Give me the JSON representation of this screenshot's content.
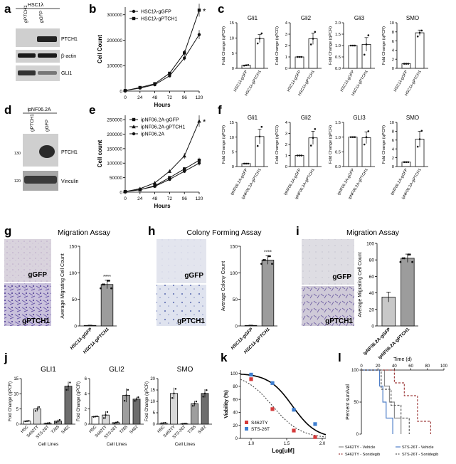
{
  "panel_labels": {
    "a": "a",
    "b": "b",
    "c": "c",
    "d": "d",
    "e": "e",
    "f": "f",
    "g": "g",
    "h": "h",
    "i": "i",
    "j": "j",
    "k": "k",
    "l": "l"
  },
  "chart_data": [
    {
      "id": "b",
      "type": "line",
      "title": "",
      "xlabel": "Hours",
      "ylabel": "Cell Count",
      "x": [
        0,
        24,
        48,
        72,
        96,
        120
      ],
      "xticks": [
        "0",
        "24",
        "48",
        "72",
        "96",
        "120"
      ],
      "yticks": [
        "0",
        "100000",
        "200000",
        "300000"
      ],
      "ylim": [
        0,
        330000
      ],
      "series": [
        {
          "name": "HSC1λ-gGFP",
          "marker": "circle",
          "values": [
            2000,
            12000,
            25000,
            60000,
            130000,
            222000
          ]
        },
        {
          "name": "HSC1λ-gPTCH1",
          "marker": "square",
          "values": [
            2000,
            14000,
            29000,
            70000,
            150000,
            318000
          ]
        }
      ],
      "annotation": "*",
      "legend": "top-left"
    },
    {
      "id": "e",
      "type": "line",
      "title": "",
      "xlabel": "Hours",
      "ylabel": "Cell count",
      "x": [
        0,
        24,
        48,
        72,
        96,
        120
      ],
      "xticks": [
        "0",
        "24",
        "48",
        "72",
        "96",
        "120"
      ],
      "yticks": [
        "0",
        "50000",
        "100000",
        "150000",
        "200000",
        "250000"
      ],
      "ylim": [
        0,
        265000
      ],
      "series": [
        {
          "name": "ipNF06.2A-gGFP",
          "marker": "square",
          "values": [
            2000,
            8000,
            22000,
            50000,
            80000,
            110000
          ]
        },
        {
          "name": "ipNF06.2A-gPTCH1",
          "marker": "triangle",
          "values": [
            2000,
            12000,
            32000,
            72000,
            125000,
            245000
          ]
        },
        {
          "name": "ipNF06.2A",
          "marker": "circle",
          "values": [
            2000,
            9000,
            20000,
            44000,
            72000,
            100000
          ]
        }
      ],
      "annotation": "*",
      "legend": "top-left"
    },
    {
      "id": "c",
      "type": "bar",
      "ylabel": "Fold Change (qPCR)",
      "categories": [
        "HSC1λ-gGFP",
        "HSC1λ-gPTCH1"
      ],
      "panels": [
        {
          "title": "Gli1",
          "yticks": [
            "0",
            "5",
            "10",
            "15"
          ],
          "ylim": [
            0,
            15
          ],
          "values": [
            1,
            9.8
          ],
          "err": [
            0.05,
            1.3
          ],
          "points": [
            [
              0.9,
              1,
              1.1
            ],
            [
              8.2,
              9.8,
              11.5
            ]
          ]
        },
        {
          "title": "Gli2",
          "yticks": [
            "0",
            "1",
            "2",
            "3",
            "4"
          ],
          "ylim": [
            0,
            4
          ],
          "values": [
            1,
            2.6
          ],
          "err": [
            0.02,
            0.5
          ],
          "points": [
            [
              1,
              1,
              1
            ],
            [
              2.1,
              2.6,
              3.2
            ]
          ]
        },
        {
          "title": "Gli3",
          "yticks": [
            "0.0",
            "0.5",
            "1.0",
            "1.5",
            "2.0"
          ],
          "ylim": [
            0,
            2
          ],
          "values": [
            1,
            1.05
          ],
          "err": [
            0.01,
            0.3
          ],
          "points": [
            [
              1,
              1,
              1
            ],
            [
              0.6,
              1.05,
              1.45
            ]
          ]
        },
        {
          "title": "SMO",
          "yticks": [
            "0",
            "2",
            "4",
            "6",
            "8",
            "10"
          ],
          "ylim": [
            0,
            10
          ],
          "values": [
            1,
            7.8
          ],
          "err": [
            0.05,
            0.6
          ],
          "points": [
            [
              1,
              1,
              1
            ],
            [
              7,
              7.8,
              8.3
            ]
          ]
        }
      ]
    },
    {
      "id": "f",
      "type": "bar",
      "ylabel": "Fold Change (qPCR)",
      "categories": [
        "ipNF06.2A-gGFP",
        "ipNF06.2A-gPTCH1"
      ],
      "panels": [
        {
          "title": "Gli1",
          "yticks": [
            "0",
            "5",
            "10",
            "15"
          ],
          "ylim": [
            0,
            15
          ],
          "values": [
            1,
            10.2
          ],
          "err": [
            0.05,
            2.5
          ],
          "points": [
            [
              1,
              1,
              1
            ],
            [
              7,
              10.2,
              13.5
            ]
          ]
        },
        {
          "title": "Gli2",
          "yticks": [
            "0",
            "1",
            "2",
            "3",
            "4"
          ],
          "ylim": [
            0,
            4
          ],
          "values": [
            1,
            2.6
          ],
          "err": [
            0.02,
            0.6
          ],
          "points": [
            [
              1,
              1,
              1
            ],
            [
              1.9,
              2.6,
              3.4
            ]
          ]
        },
        {
          "title": "GLI3",
          "yticks": [
            "0.0",
            "0.5",
            "1.0",
            "1.5"
          ],
          "ylim": [
            0,
            1.5
          ],
          "values": [
            1,
            0.98
          ],
          "err": [
            0.01,
            0.2
          ],
          "points": [
            [
              1,
              1,
              1
            ],
            [
              0.75,
              1,
              1.2
            ]
          ]
        },
        {
          "title": "SMO",
          "yticks": [
            "0",
            "2",
            "4",
            "6",
            "8",
            "10"
          ],
          "ylim": [
            0,
            10
          ],
          "values": [
            1,
            6.2
          ],
          "err": [
            0.05,
            1.8
          ],
          "points": [
            [
              1,
              1,
              1
            ],
            [
              4.5,
              6.2,
              8.1
            ]
          ]
        }
      ]
    },
    {
      "id": "g",
      "type": "bar",
      "title": "Migration Assay",
      "ylabel": "Average Migrating Cell Count",
      "categories": [
        "HSC1λ-gGFP",
        "HSC1λ-gPTCH1"
      ],
      "ylim": [
        0,
        150
      ],
      "yticks": [
        "0",
        "50",
        "100",
        "150"
      ],
      "values": [
        1,
        78
      ],
      "err": [
        0.5,
        8
      ],
      "annotation": "****"
    },
    {
      "id": "h",
      "type": "bar",
      "title": "Colony Forming Assay",
      "ylabel": "Average Colony Count",
      "categories": [
        "HSC1λ-gGFP",
        "HSC1λ-gPTCH1"
      ],
      "ylim": [
        0,
        150
      ],
      "yticks": [
        "0",
        "50",
        "100",
        "150"
      ],
      "values": [
        1,
        124
      ],
      "err": [
        0.5,
        8
      ],
      "annotation": "****"
    },
    {
      "id": "i",
      "type": "bar",
      "title": "Migration Assay",
      "ylabel": "Average Migrating Cell Count",
      "categories": [
        "ipNF06.2A-gGFP",
        "ipNF06.2A-gPTCH1"
      ],
      "ylim": [
        0,
        100
      ],
      "yticks": [
        "0",
        "20",
        "40",
        "60",
        "80",
        "100"
      ],
      "values": [
        35,
        82
      ],
      "err": [
        6,
        5
      ]
    },
    {
      "id": "j",
      "type": "bar",
      "xlabel": "Cell Lines",
      "ylabel": "Fold Change (qPCR)",
      "categories": [
        "HSC",
        "S462TY",
        "STS-26T",
        "T265",
        "S462"
      ],
      "panels": [
        {
          "title": "GLI1",
          "yticks": [
            "0",
            "5",
            "10",
            "15"
          ],
          "ylim": [
            0,
            15
          ],
          "values": [
            1,
            5,
            0.3,
            1,
            12.5
          ],
          "err": [
            0.1,
            0.8,
            0.1,
            0.5,
            1.5
          ]
        },
        {
          "title": "GLI2",
          "yticks": [
            "0",
            "2",
            "4",
            "6"
          ],
          "ylim": [
            0,
            6
          ],
          "values": [
            1,
            1.2,
            0.2,
            3.8,
            3.3
          ],
          "err": [
            0.05,
            0.5,
            0.1,
            0.9,
            0.3
          ]
        },
        {
          "title": "SMO",
          "yticks": [
            "0",
            "5",
            "10",
            "15",
            "20"
          ],
          "ylim": [
            0,
            20
          ],
          "values": [
            0.5,
            13.5,
            0.2,
            9,
            13.5
          ],
          "err": [
            0.1,
            2.5,
            0.1,
            1.2,
            1.8
          ]
        }
      ]
    },
    {
      "id": "k",
      "type": "scatter",
      "xlabel": "Log[uM]",
      "ylabel": "Viability (%)",
      "xticks": [
        "1.0",
        "1.5",
        "2.0"
      ],
      "yticks": [
        "0",
        "20",
        "40",
        "60",
        "80",
        "100"
      ],
      "xlim": [
        0.85,
        2.05
      ],
      "ylim": [
        0,
        105
      ],
      "series": [
        {
          "name": "S462TY",
          "color": "#d43a3a",
          "x": [
            1.0,
            1.3,
            1.6,
            1.9
          ],
          "y": [
            91,
            45,
            12,
            2
          ]
        },
        {
          "name": "STS-26T",
          "color": "#3f7fd0",
          "x": [
            1.0,
            1.3,
            1.6,
            1.9
          ],
          "y": [
            98,
            85,
            44,
            22
          ]
        }
      ],
      "legend": "bottom-left"
    },
    {
      "id": "l",
      "type": "line",
      "xlabel": "Time (d)",
      "ylabel": "Percent survival",
      "xticks": [
        "0",
        "20",
        "40",
        "60",
        "80",
        "100"
      ],
      "yticks": [
        "0",
        "50",
        "100"
      ],
      "xlim": [
        0,
        100
      ],
      "ylim": [
        0,
        100
      ],
      "series": [
        {
          "name": "S462TY - Vehicle",
          "color": "#8a8a8a",
          "dash": false,
          "x": [
            0,
            28,
            28,
            34,
            34,
            40,
            40,
            48,
            48
          ],
          "y": [
            100,
            100,
            75,
            75,
            50,
            50,
            25,
            25,
            0
          ]
        },
        {
          "name": "STS-26T - Vehicle",
          "color": "#4f7fc8",
          "dash": false,
          "x": [
            0,
            22,
            22,
            26,
            26,
            30,
            30,
            38,
            38
          ],
          "y": [
            100,
            100,
            75,
            75,
            50,
            50,
            25,
            25,
            0
          ]
        },
        {
          "name": "S462TY - Sonidegib",
          "color": "#a04040",
          "dash": true,
          "x": [
            0,
            40,
            40,
            52,
            52,
            68,
            68,
            84,
            84
          ],
          "y": [
            100,
            100,
            80,
            80,
            60,
            60,
            20,
            20,
            0
          ]
        },
        {
          "name": "STS-26T - Sonidegib",
          "color": "#5a5a5a",
          "dash": true,
          "x": [
            0,
            24,
            24,
            36,
            36,
            48,
            48,
            58,
            58
          ],
          "y": [
            100,
            100,
            70,
            70,
            45,
            45,
            25,
            25,
            0
          ]
        }
      ],
      "legend": "bottom"
    }
  ],
  "blot_a": {
    "group_label": "HSC1λ",
    "lanes": [
      "gPTCH1",
      "gGFP"
    ],
    "bands": [
      "PTCH1",
      "β-actin",
      "GLI1"
    ]
  },
  "blot_d": {
    "group_label": "ipNF06.2A",
    "lanes": [
      "gPTCH1",
      "gGFP"
    ],
    "bands": [
      "PTCH1",
      "Vinculin"
    ],
    "markers": [
      "130",
      "120"
    ]
  },
  "images": {
    "g_top": "gGFP",
    "g_bottom": "gPTCH1",
    "h_top": "gGFP",
    "h_bottom": "gPTCH1",
    "i_top": "gGFP",
    "i_bottom": "gPTCH1"
  }
}
